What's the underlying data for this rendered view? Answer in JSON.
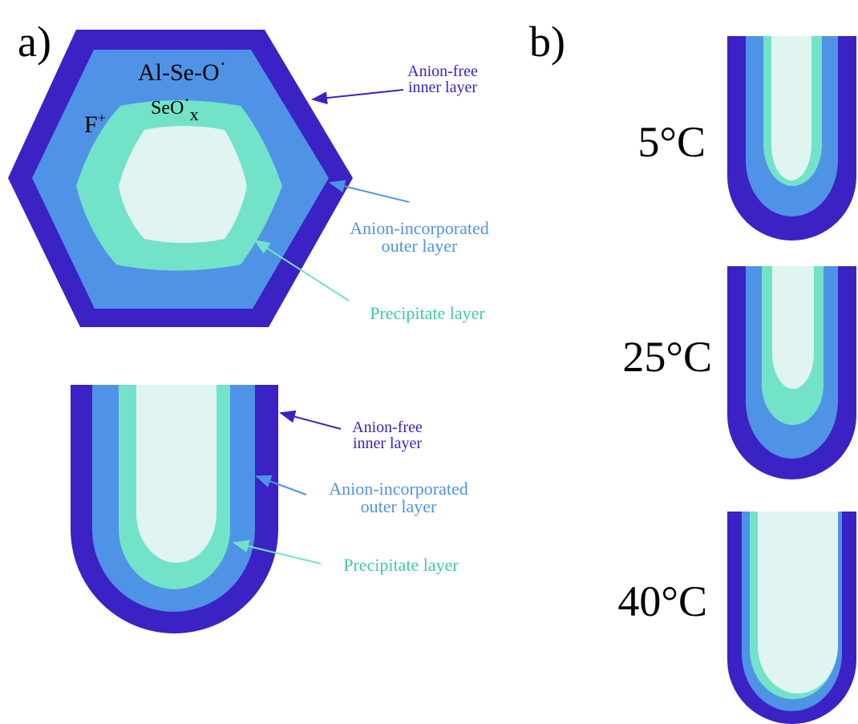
{
  "panel_a": {
    "label": "a)",
    "hexagon": {
      "al_se_o": {
        "text": "Al-Se-O",
        "sup": "·"
      },
      "f": {
        "text": "F",
        "sup": "+"
      },
      "seox": {
        "text": "SeO",
        "sup": "·",
        "sub": "x"
      },
      "callouts": [
        {
          "lines": [
            "Anion-free",
            "inner layer"
          ]
        },
        {
          "lines": [
            "Anion-incorporated",
            "outer layer"
          ]
        },
        {
          "lines": [
            "Precipitate layer"
          ]
        }
      ]
    },
    "rod": {
      "callouts": [
        {
          "lines": [
            "Anion-free",
            "inner layer"
          ]
        },
        {
          "lines": [
            "Anion-incorporated",
            "outer layer"
          ]
        },
        {
          "lines": [
            "Precipitate layer"
          ]
        }
      ]
    }
  },
  "panel_b": {
    "label": "b)",
    "temperatures": [
      "5°C",
      "25°C",
      "40°C"
    ]
  }
}
